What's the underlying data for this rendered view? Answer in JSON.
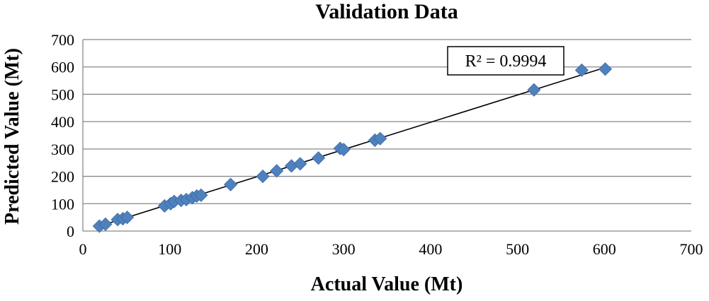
{
  "chart_data": {
    "type": "scatter",
    "title": "Validation Data",
    "xlabel": "Actual Value (Mt)",
    "ylabel": "Predicted Value (Mt)",
    "xlim": [
      0,
      700
    ],
    "ylim": [
      0,
      700
    ],
    "xticks": [
      0,
      100,
      200,
      300,
      400,
      500,
      600,
      700
    ],
    "yticks": [
      0,
      100,
      200,
      300,
      400,
      500,
      600,
      700
    ],
    "grid": "horizontal",
    "series": [
      {
        "marker": "diamond",
        "color": "#4f81bd",
        "points": [
          [
            19,
            18
          ],
          [
            26,
            25
          ],
          [
            40,
            42
          ],
          [
            46,
            45
          ],
          [
            51,
            50
          ],
          [
            94,
            92
          ],
          [
            101,
            100
          ],
          [
            105,
            108
          ],
          [
            113,
            112
          ],
          [
            119,
            115
          ],
          [
            126,
            122
          ],
          [
            131,
            128
          ],
          [
            136,
            131
          ],
          [
            170,
            170
          ],
          [
            207,
            200
          ],
          [
            223,
            220
          ],
          [
            240,
            238
          ],
          [
            250,
            246
          ],
          [
            271,
            267
          ],
          [
            296,
            302
          ],
          [
            300,
            298
          ],
          [
            336,
            332
          ],
          [
            342,
            338
          ],
          [
            519,
            516
          ],
          [
            574,
            588
          ],
          [
            601,
            592
          ]
        ]
      }
    ],
    "trendline": {
      "color": "#000000",
      "x_start": 19,
      "y_start": 18,
      "x_end": 601,
      "y_end": 598
    },
    "annotation": "R² = 0.9994"
  }
}
